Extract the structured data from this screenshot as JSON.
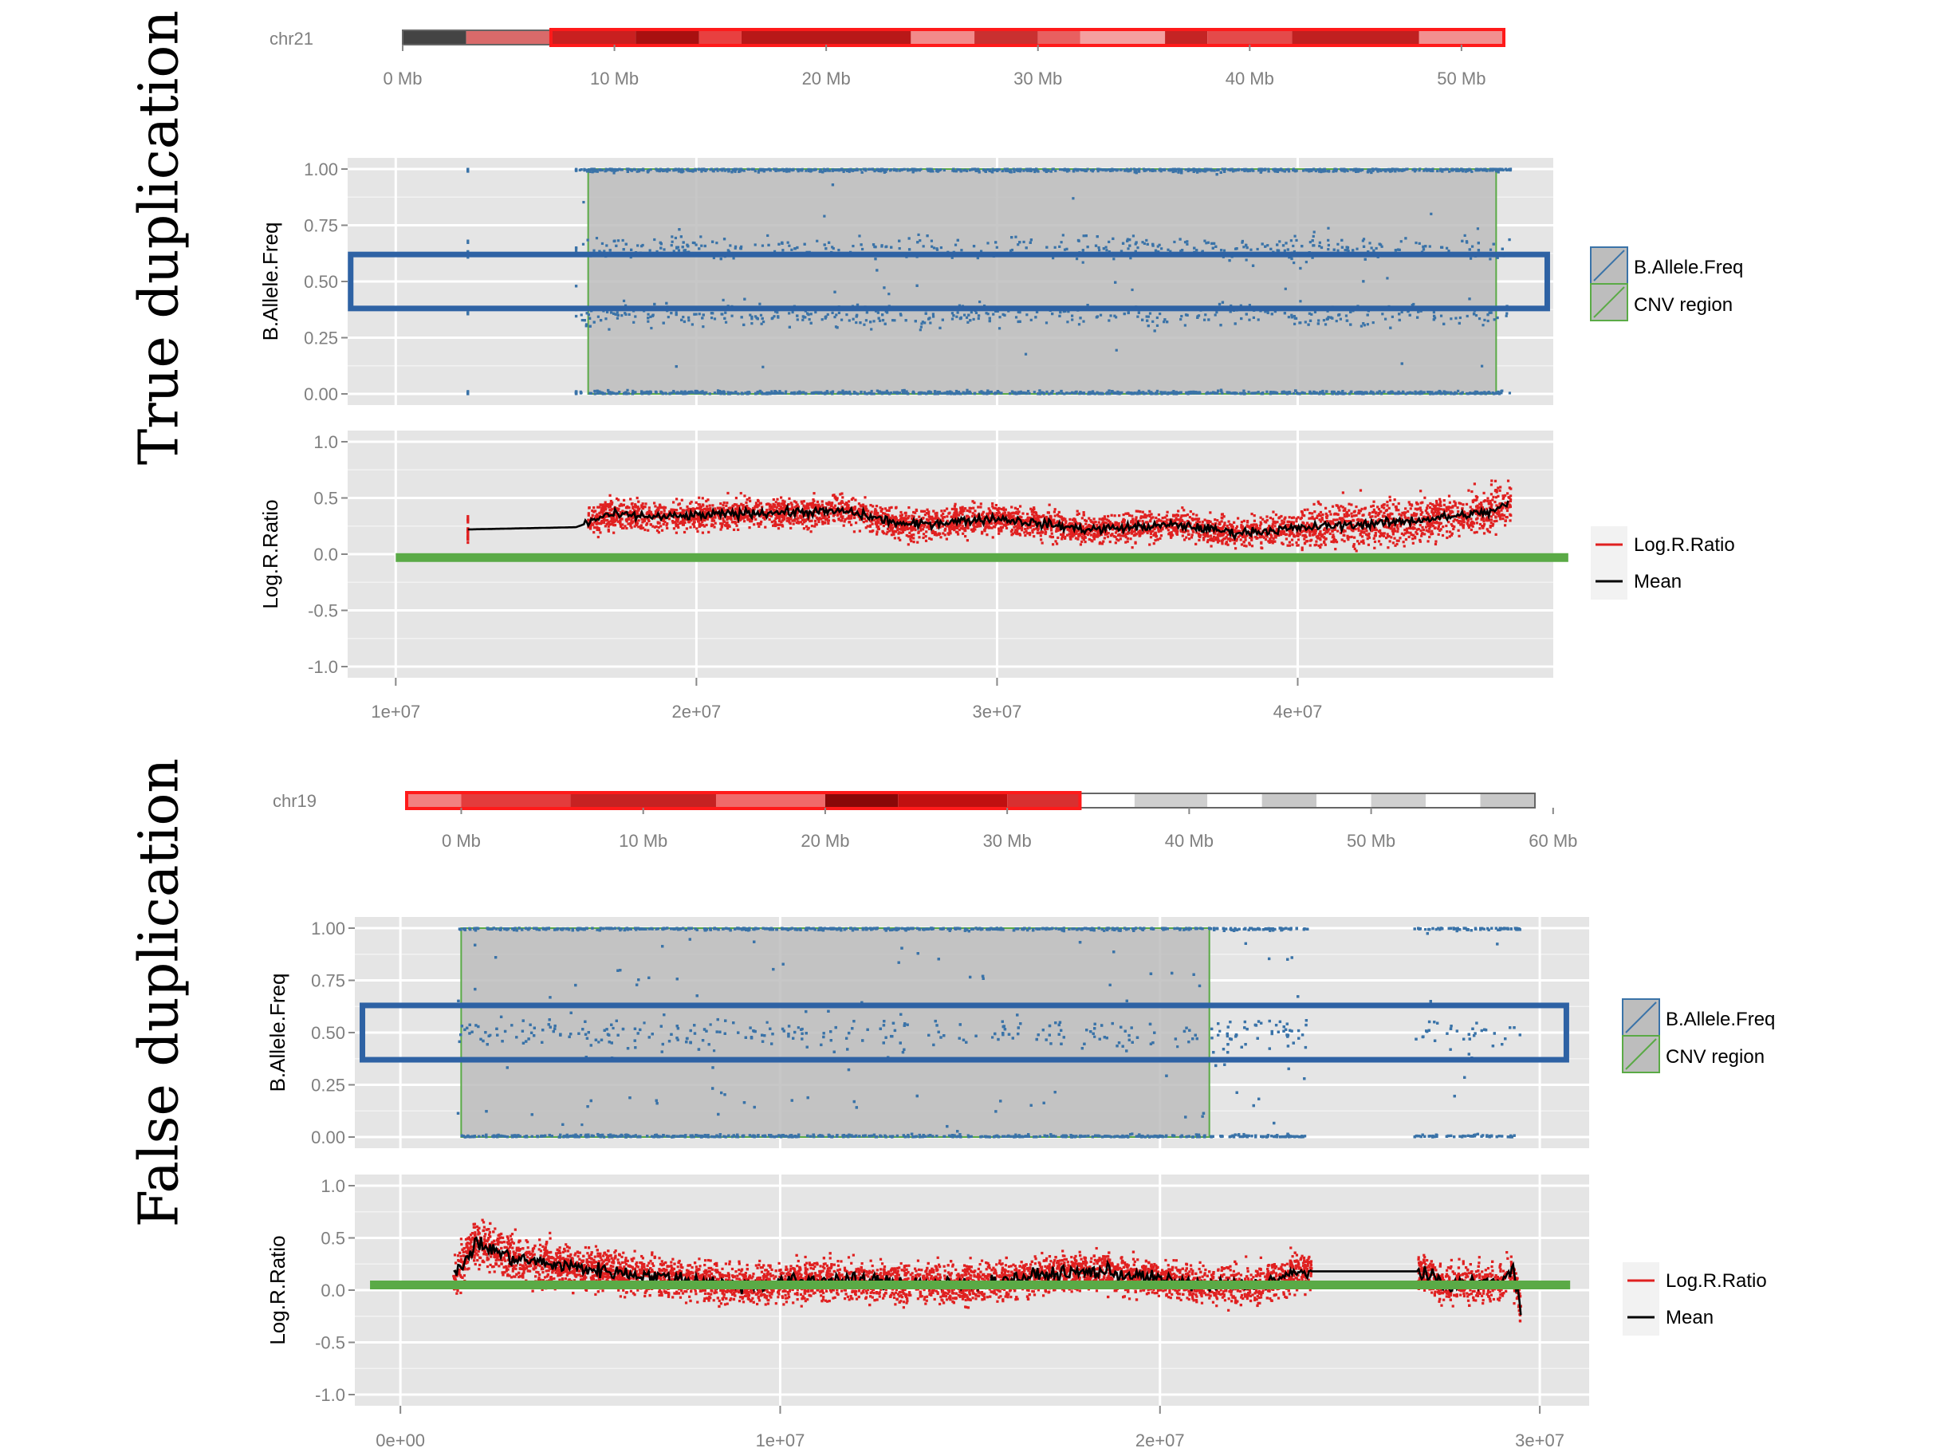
{
  "colors": {
    "baf": "#3a73a8",
    "lrr": "#e02020",
    "mean": "#000000",
    "cnv": "#5aaa46",
    "highlight": "#2e62a4",
    "panel_bg": "#e5e5e5",
    "grid": "#ffffff",
    "cnv_fill": "#bdbdbd"
  },
  "chart_data": [
    {
      "section_title": "True duplication",
      "ideogram": {
        "chromosome": "chr21",
        "ticks": [
          "0 Mb",
          "10 Mb",
          "20 Mb",
          "30 Mb",
          "40 Mb",
          "50 Mb"
        ],
        "tick_values": [
          0,
          10,
          20,
          30,
          40,
          50
        ],
        "range_mb": [
          0,
          52
        ],
        "highlighted_region_mb": [
          7,
          52
        ]
      },
      "baf": {
        "type": "scatter",
        "ylabel": "B.Allele.Freq",
        "yticks": [
          "1.00",
          "0.75",
          "0.50",
          "0.25",
          "0.00"
        ],
        "ylim": [
          0,
          1
        ],
        "xlim": [
          8400000,
          48500000
        ],
        "cnv_region": [
          16400000,
          46600000
        ],
        "data_range": [
          12400000,
          47100000
        ],
        "highlight_box": {
          "x": [
            8500000,
            48300000
          ],
          "y": [
            0.38,
            0.62
          ]
        },
        "legend": [
          "B.Allele.Freq",
          "CNV region"
        ]
      },
      "lrr": {
        "type": "scatter",
        "ylabel": "Log.R.Ratio",
        "yticks": [
          "1.0",
          "0.5",
          "0.0",
          "-0.5",
          "-1.0"
        ],
        "ylim": [
          -1,
          1
        ],
        "xlim": [
          8400000,
          48500000
        ],
        "xticks": [
          "1e+07",
          "2e+07",
          "3e+07",
          "4e+07"
        ],
        "xtick_values": [
          10000000,
          20000000,
          30000000,
          40000000
        ],
        "baseline": {
          "y": -0.03,
          "x": [
            10000000,
            49000000
          ]
        },
        "mean_points": [
          [
            12400000,
            0.22
          ],
          [
            16000000,
            0.24
          ],
          [
            16400000,
            0.28
          ],
          [
            17000000,
            0.35
          ],
          [
            19000000,
            0.33
          ],
          [
            22000000,
            0.37
          ],
          [
            25000000,
            0.38
          ],
          [
            27000000,
            0.26
          ],
          [
            30000000,
            0.32
          ],
          [
            33000000,
            0.22
          ],
          [
            36000000,
            0.26
          ],
          [
            38000000,
            0.19
          ],
          [
            41000000,
            0.25
          ],
          [
            43000000,
            0.28
          ],
          [
            45000000,
            0.33
          ],
          [
            46500000,
            0.38
          ],
          [
            47000000,
            0.45
          ]
        ],
        "legend": [
          "Log.R.Ratio",
          "Mean"
        ]
      }
    },
    {
      "section_title": "False duplication",
      "ideogram": {
        "chromosome": "chr19",
        "ticks": [
          "0 Mb",
          "10 Mb",
          "20 Mb",
          "30 Mb",
          "40 Mb",
          "50 Mb",
          "60 Mb"
        ],
        "tick_values": [
          0,
          10,
          20,
          30,
          40,
          50,
          60
        ],
        "range_mb": [
          -3,
          59
        ],
        "highlighted_region_mb": [
          -3,
          34
        ]
      },
      "baf": {
        "type": "scatter",
        "ylabel": "B.Allele.Freq",
        "yticks": [
          "1.00",
          "0.75",
          "0.50",
          "0.25",
          "0.00"
        ],
        "ylim": [
          0,
          1
        ],
        "xlim": [
          -1200000,
          31300000
        ],
        "cnv_region": [
          1600000,
          21300000
        ],
        "data_range": [
          1400000,
          29500000
        ],
        "highlight_box": {
          "x": [
            -1000000,
            30700000
          ],
          "y": [
            0.37,
            0.63
          ]
        },
        "legend": [
          "B.Allele.Freq",
          "CNV region"
        ]
      },
      "lrr": {
        "type": "scatter",
        "ylabel": "Log.R.Ratio",
        "yticks": [
          "1.0",
          "0.5",
          "0.0",
          "-0.5",
          "-1.0"
        ],
        "ylim": [
          -1,
          1
        ],
        "xlim": [
          -1200000,
          31300000
        ],
        "xticks": [
          "0e+00",
          "1e+07",
          "2e+07",
          "3e+07"
        ],
        "xtick_values": [
          0,
          10000000,
          20000000,
          30000000
        ],
        "baseline": {
          "y": 0.05,
          "x": [
            -800000,
            30800000
          ]
        },
        "mean_points": [
          [
            1400000,
            0.12
          ],
          [
            2000000,
            0.45
          ],
          [
            3000000,
            0.3
          ],
          [
            5000000,
            0.2
          ],
          [
            7000000,
            0.12
          ],
          [
            9000000,
            0.05
          ],
          [
            11000000,
            0.1
          ],
          [
            13000000,
            0.08
          ],
          [
            15000000,
            0.05
          ],
          [
            17000000,
            0.15
          ],
          [
            18500000,
            0.18
          ],
          [
            20000000,
            0.1
          ],
          [
            21300000,
            0.05
          ],
          [
            22500000,
            0.05
          ],
          [
            23500000,
            0.15
          ],
          [
            24000000,
            0.18
          ],
          [
            26800000,
            0.18
          ],
          [
            27500000,
            0.05
          ],
          [
            29000000,
            0.08
          ],
          [
            29300000,
            0.2
          ],
          [
            29500000,
            -0.2
          ]
        ],
        "legend": [
          "Log.R.Ratio",
          "Mean"
        ]
      }
    }
  ]
}
